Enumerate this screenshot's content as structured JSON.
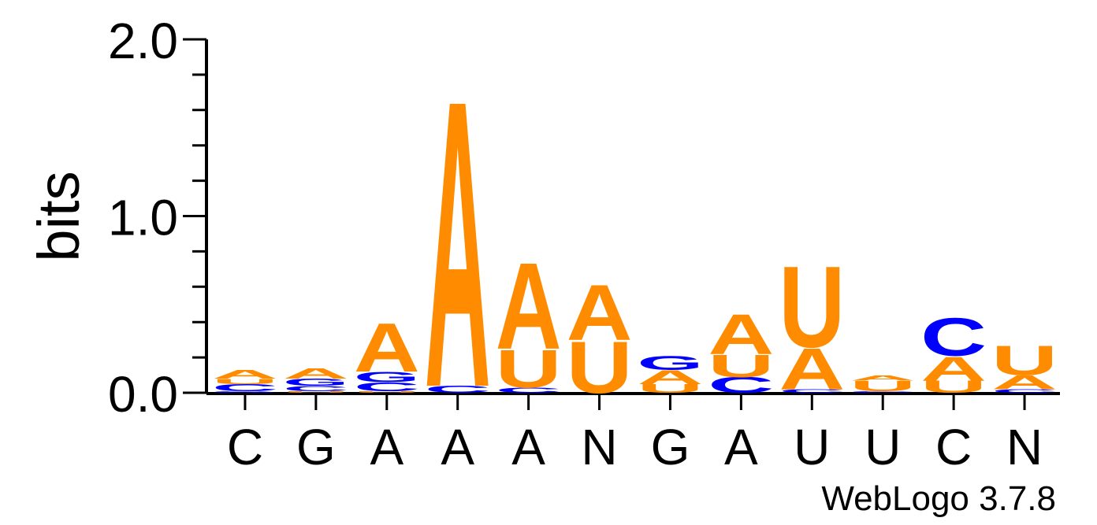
{
  "chart_data": {
    "type": "sequence-logo",
    "ylabel": "bits",
    "ylim": [
      0,
      2
    ],
    "yticks": [
      "0.0",
      "1.0",
      "2.0"
    ],
    "credit": "WebLogo 3.7.8",
    "colors": {
      "A": "#ff8c00",
      "U": "#ff8c00",
      "G": "#0000ff",
      "C": "#0000ff"
    },
    "positions": [
      {
        "label": "C",
        "stack": [
          {
            "letter": "G",
            "bits": 0.01
          },
          {
            "letter": "C",
            "bits": 0.04
          },
          {
            "letter": "U",
            "bits": 0.03
          },
          {
            "letter": "A",
            "bits": 0.05
          }
        ]
      },
      {
        "label": "G",
        "stack": [
          {
            "letter": "U",
            "bits": 0.01
          },
          {
            "letter": "C",
            "bits": 0.03
          },
          {
            "letter": "G",
            "bits": 0.04
          },
          {
            "letter": "A",
            "bits": 0.06
          }
        ]
      },
      {
        "label": "A",
        "stack": [
          {
            "letter": "U",
            "bits": 0.01
          },
          {
            "letter": "C",
            "bits": 0.05
          },
          {
            "letter": "G",
            "bits": 0.06
          },
          {
            "letter": "A",
            "bits": 0.28
          }
        ]
      },
      {
        "label": "A",
        "stack": [
          {
            "letter": "C",
            "bits": 0.04
          },
          {
            "letter": "A",
            "bits": 1.66
          }
        ]
      },
      {
        "label": "A",
        "stack": [
          {
            "letter": "C",
            "bits": 0.03
          },
          {
            "letter": "U",
            "bits": 0.22
          },
          {
            "letter": "A",
            "bits": 0.5
          }
        ]
      },
      {
        "label": "N",
        "stack": [
          {
            "letter": "U",
            "bits": 0.3
          },
          {
            "letter": "A",
            "bits": 0.32
          }
        ]
      },
      {
        "label": "G",
        "stack": [
          {
            "letter": "U",
            "bits": 0.05
          },
          {
            "letter": "A",
            "bits": 0.08
          },
          {
            "letter": "G",
            "bits": 0.08
          }
        ]
      },
      {
        "label": "A",
        "stack": [
          {
            "letter": "C",
            "bits": 0.09
          },
          {
            "letter": "U",
            "bits": 0.13
          },
          {
            "letter": "A",
            "bits": 0.23
          }
        ]
      },
      {
        "label": "U",
        "stack": [
          {
            "letter": "C",
            "bits": 0.02
          },
          {
            "letter": "A",
            "bits": 0.24
          },
          {
            "letter": "U",
            "bits": 0.47
          }
        ]
      },
      {
        "label": "U",
        "stack": [
          {
            "letter": "C",
            "bits": 0.01
          },
          {
            "letter": "U",
            "bits": 0.06
          },
          {
            "letter": "A",
            "bits": 0.03
          }
        ]
      },
      {
        "label": "C",
        "stack": [
          {
            "letter": "U",
            "bits": 0.07
          },
          {
            "letter": "A",
            "bits": 0.14
          },
          {
            "letter": "C",
            "bits": 0.22
          }
        ]
      },
      {
        "label": "N",
        "stack": [
          {
            "letter": "C",
            "bits": 0.02
          },
          {
            "letter": "A",
            "bits": 0.08
          },
          {
            "letter": "U",
            "bits": 0.17
          }
        ]
      }
    ]
  }
}
